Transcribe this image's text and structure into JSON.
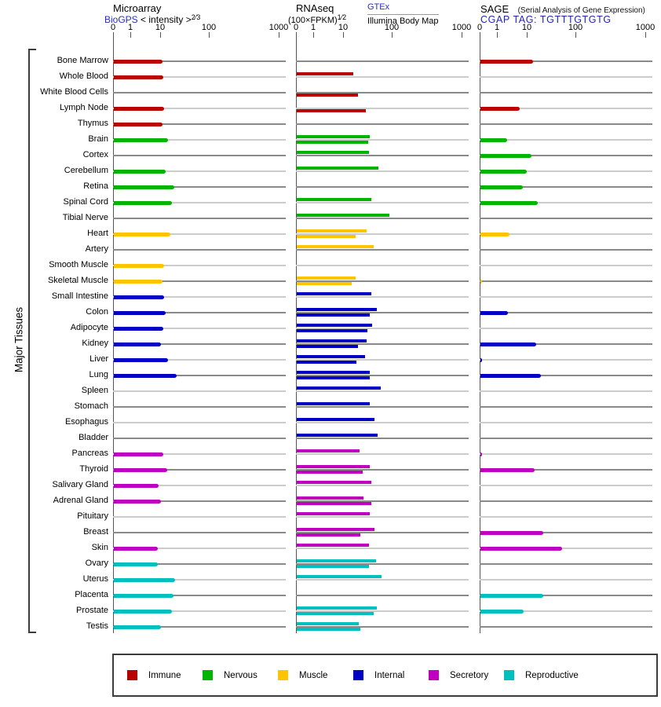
{
  "header": {
    "microarray": {
      "title": "Microarray",
      "link": "BioGPS",
      "subtitle": "< intensity >",
      "subtitle_exp": "2⁄3"
    },
    "rnaseq": {
      "title": "RNAseq",
      "formula": "(100×FPKM)",
      "formula_exp": "1⁄2",
      "link": "GTEx",
      "source2": "Illumina Body Map"
    },
    "sage": {
      "title": "SAGE",
      "note": "(Serial Analysis of Gene Expression)",
      "tag_line": "CGAP TAG: TGTTTGTGTG"
    }
  },
  "sidebar_label": "Major Tissues",
  "legend": [
    {
      "label": "Immune",
      "color": "#bb0000"
    },
    {
      "label": "Nervous",
      "color": "#00b400"
    },
    {
      "label": "Muscle",
      "color": "#ffc400"
    },
    {
      "label": "Internal",
      "color": "#0000c4"
    },
    {
      "label": "Secretory",
      "color": "#c000c0"
    },
    {
      "label": "Reproductive",
      "color": "#00bfbf"
    }
  ],
  "chart_data": {
    "type": "bar",
    "orientation": "horizontal",
    "scale": "log-like; tick anchors 0,1,10,100,1000 per panel",
    "tick_labels": [
      "0",
      "1",
      "10",
      "100",
      "1000"
    ],
    "panels": [
      "Microarray",
      "RNAseq",
      "SAGE"
    ],
    "rnaseq_series": [
      "GTEx (upper thin bar)",
      "Illumina Body Map (lower thin bar)"
    ],
    "category_colors": {
      "immune": "#bb0000",
      "nervous": "#00b400",
      "muscle": "#ffc400",
      "internal": "#0000c4",
      "secretory": "#c000c0",
      "reproductive": "#00bfbf"
    },
    "tissues": [
      {
        "name": "Bone Marrow",
        "category": "immune",
        "microarray": 11,
        "gtex": null,
        "illumina": null,
        "sage": 13.5
      },
      {
        "name": "Whole Blood",
        "category": "immune",
        "microarray": 11.5,
        "gtex": 16,
        "illumina": null,
        "sage": null
      },
      {
        "name": "White Blood Cells",
        "category": "immune",
        "microarray": null,
        "gtex": null,
        "illumina": 20.5,
        "sage": null
      },
      {
        "name": "Lymph Node",
        "category": "immune",
        "microarray": 12,
        "gtex": null,
        "illumina": 29,
        "sage": 5.8
      },
      {
        "name": "Thymus",
        "category": "immune",
        "microarray": 11,
        "gtex": null,
        "illumina": null,
        "sage": null
      },
      {
        "name": "Brain",
        "category": "nervous",
        "microarray": 14.5,
        "gtex": 35.5,
        "illumina": 33,
        "sage": 2.2
      },
      {
        "name": "Cortex",
        "category": "nervous",
        "microarray": null,
        "gtex": 34.5,
        "illumina": null,
        "sage": 12.7
      },
      {
        "name": "Cerebellum",
        "category": "nervous",
        "microarray": 13,
        "gtex": 53,
        "illumina": null,
        "sage": 9.8
      },
      {
        "name": "Retina",
        "category": "nervous",
        "microarray": 19.5,
        "gtex": null,
        "illumina": null,
        "sage": 7.4
      },
      {
        "name": "Spinal Cord",
        "category": "nervous",
        "microarray": 17.5,
        "gtex": 38,
        "illumina": null,
        "sage": 16.8
      },
      {
        "name": "Tibial Nerve",
        "category": "nervous",
        "microarray": null,
        "gtex": 89,
        "illumina": null,
        "sage": null
      },
      {
        "name": "Heart",
        "category": "muscle",
        "microarray": 16.5,
        "gtex": 30,
        "illumina": 18,
        "sage": 2.6
      },
      {
        "name": "Artery",
        "category": "muscle",
        "microarray": null,
        "gtex": 42,
        "illumina": null,
        "sage": null
      },
      {
        "name": "Smooth Muscle",
        "category": "muscle",
        "microarray": 12,
        "gtex": null,
        "illumina": null,
        "sage": null
      },
      {
        "name": "Skeletal Muscle",
        "category": "muscle",
        "microarray": 11,
        "gtex": 18,
        "illumina": 15,
        "sage": 0.15
      },
      {
        "name": "Small Intestine",
        "category": "internal",
        "microarray": 12,
        "gtex": 38.5,
        "illumina": null,
        "sage": null
      },
      {
        "name": "Colon",
        "category": "internal",
        "microarray": 13,
        "gtex": 50,
        "illumina": 35.5,
        "sage": 2.4
      },
      {
        "name": "Adipocyte",
        "category": "internal",
        "microarray": 11.5,
        "gtex": 40,
        "illumina": 32,
        "sage": null
      },
      {
        "name": "Kidney",
        "category": "internal",
        "microarray": 10.5,
        "gtex": 30.5,
        "illumina": 20,
        "sage": 15.8
      },
      {
        "name": "Liver",
        "category": "internal",
        "microarray": 14.5,
        "gtex": 28.5,
        "illumina": 19,
        "sage": 0.15
      },
      {
        "name": "Lung",
        "category": "internal",
        "microarray": 22,
        "gtex": 36,
        "illumina": 35.5,
        "sage": 19.2
      },
      {
        "name": "Spleen",
        "category": "internal",
        "microarray": null,
        "gtex": 60,
        "illumina": null,
        "sage": null
      },
      {
        "name": "Stomach",
        "category": "internal",
        "microarray": null,
        "gtex": 35,
        "illumina": null,
        "sage": null
      },
      {
        "name": "Esophagus",
        "category": "internal",
        "microarray": null,
        "gtex": 45,
        "illumina": null,
        "sage": null
      },
      {
        "name": "Bladder",
        "category": "internal",
        "microarray": null,
        "gtex": 52,
        "illumina": null,
        "sage": null
      },
      {
        "name": "Pancreas",
        "category": "secretory",
        "microarray": 11.5,
        "gtex": 21.5,
        "illumina": null,
        "sage": 0.15
      },
      {
        "name": "Thyroid",
        "category": "secretory",
        "microarray": 14,
        "gtex": 35.5,
        "illumina": 25,
        "sage": 14.5
      },
      {
        "name": "Salivary Gland",
        "category": "secretory",
        "microarray": 9,
        "gtex": 37.5,
        "illumina": null,
        "sage": null
      },
      {
        "name": "Adrenal Gland",
        "category": "secretory",
        "microarray": 10.5,
        "gtex": 26.5,
        "illumina": 38.5,
        "sage": null
      },
      {
        "name": "Pituitary",
        "category": "secretory",
        "microarray": null,
        "gtex": 36,
        "illumina": null,
        "sage": null
      },
      {
        "name": "Breast",
        "category": "secretory",
        "microarray": null,
        "gtex": 44,
        "illumina": 22.5,
        "sage": 22
      },
      {
        "name": "Skin",
        "category": "secretory",
        "microarray": 8.5,
        "gtex": 34.5,
        "illumina": null,
        "sage": 53
      },
      {
        "name": "Ovary",
        "category": "reproductive",
        "microarray": 8.5,
        "gtex": 47,
        "illumina": 34.5,
        "sage": null
      },
      {
        "name": "Uterus",
        "category": "reproductive",
        "microarray": 20.5,
        "gtex": 62,
        "illumina": null,
        "sage": null
      },
      {
        "name": "Placenta",
        "category": "reproductive",
        "microarray": 19,
        "gtex": null,
        "illumina": null,
        "sage": 21.5
      },
      {
        "name": "Prostate",
        "category": "reproductive",
        "microarray": 17.5,
        "gtex": 50,
        "illumina": 43,
        "sage": 7.7
      },
      {
        "name": "Testis",
        "category": "reproductive",
        "microarray": 10.5,
        "gtex": 21,
        "illumina": 23,
        "sage": null
      }
    ]
  }
}
